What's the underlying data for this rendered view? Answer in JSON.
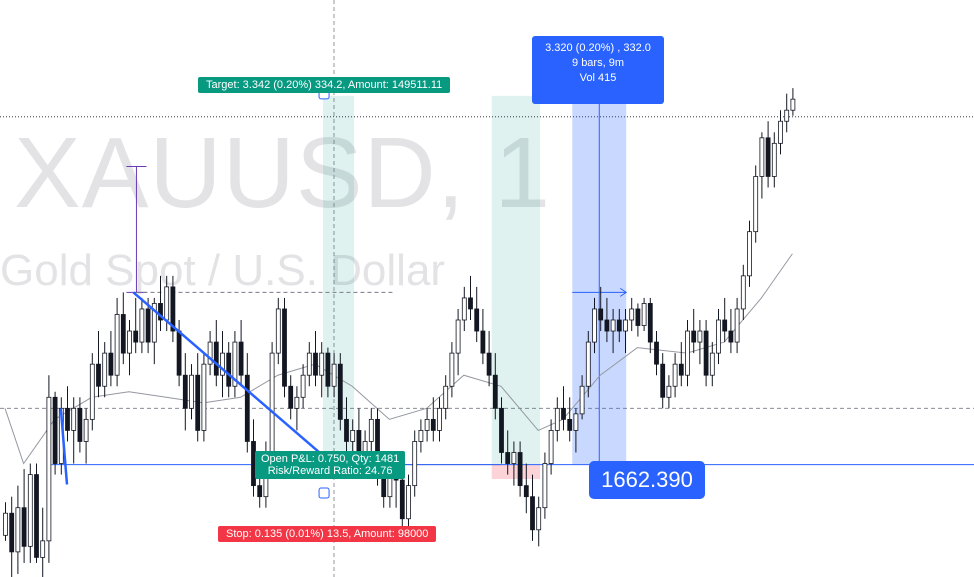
{
  "watermark": {
    "symbol": "XAUUSD, 1",
    "description": "Gold Spot / U.S. Dollar"
  },
  "position_labels": {
    "target": "Target: 3.342 (0.20%) 334.2, Amount: 149511.11",
    "stop": "Stop: 0.135 (0.01%) 13.5, Amount: 98000",
    "open_pnl": "Open P&L: 0.750, Qty: 1481",
    "risk_reward": "Risk/Reward Ratio: 24.76"
  },
  "measure": {
    "line1": "3.320 (0.20%) , 332.0",
    "line2": "9 bars, 9m",
    "line3": "Vol 415"
  },
  "price_tag": "1662.390",
  "colors": {
    "up": "#ffffff",
    "down": "#131722",
    "blue": "#2962ff",
    "green": "#089981",
    "red": "#f23645",
    "ma": "#9598a1"
  },
  "chart_data": {
    "type": "candlestick",
    "title": "XAUUSD, 1 - Gold Spot / U.S. Dollar",
    "interval": "1m",
    "ylim": [
      1661.3,
      1666.1
    ],
    "current_price": 1662.39,
    "candles": [
      [
        1661.75,
        1662.05,
        1661.7,
        1661.95
      ],
      [
        1661.95,
        1662.1,
        1661.3,
        1661.6
      ],
      [
        1661.6,
        1662.2,
        1661.4,
        1662.0
      ],
      [
        1662.0,
        1662.35,
        1661.5,
        1661.65
      ],
      [
        1661.65,
        1662.4,
        1661.5,
        1662.3
      ],
      [
        1662.3,
        1662.4,
        1661.5,
        1661.55
      ],
      [
        1661.55,
        1662.0,
        1661.35,
        1661.7
      ],
      [
        1661.7,
        1663.2,
        1661.5,
        1663.0
      ],
      [
        1663.0,
        1663.05,
        1662.3,
        1662.4
      ],
      [
        1662.4,
        1663.0,
        1662.3,
        1662.9
      ],
      [
        1662.9,
        1663.1,
        1662.6,
        1662.7
      ],
      [
        1662.7,
        1663.0,
        1662.4,
        1662.9
      ],
      [
        1662.9,
        1663.0,
        1662.5,
        1662.6
      ],
      [
        1662.6,
        1662.9,
        1662.4,
        1662.8
      ],
      [
        1662.8,
        1663.4,
        1662.7,
        1663.3
      ],
      [
        1663.3,
        1663.6,
        1663.0,
        1663.1
      ],
      [
        1663.1,
        1663.5,
        1663.0,
        1663.4
      ],
      [
        1663.4,
        1663.6,
        1663.1,
        1663.2
      ],
      [
        1663.2,
        1663.9,
        1663.1,
        1663.75
      ],
      [
        1663.75,
        1663.95,
        1663.3,
        1663.4
      ],
      [
        1663.4,
        1663.7,
        1663.2,
        1663.6
      ],
      [
        1663.6,
        1663.9,
        1663.4,
        1663.5
      ],
      [
        1663.5,
        1663.9,
        1663.4,
        1663.8
      ],
      [
        1663.8,
        1663.9,
        1663.4,
        1663.5
      ],
      [
        1663.5,
        1663.9,
        1663.3,
        1663.85
      ],
      [
        1663.85,
        1664.1,
        1663.6,
        1663.7
      ],
      [
        1663.7,
        1664.1,
        1663.6,
        1664.0
      ],
      [
        1664.0,
        1664.1,
        1663.5,
        1663.6
      ],
      [
        1663.6,
        1663.7,
        1663.1,
        1663.2
      ],
      [
        1663.2,
        1663.4,
        1662.7,
        1662.9
      ],
      [
        1662.9,
        1663.3,
        1662.8,
        1663.2
      ],
      [
        1663.2,
        1663.4,
        1662.6,
        1662.7
      ],
      [
        1662.7,
        1663.4,
        1662.6,
        1663.3
      ],
      [
        1663.3,
        1663.6,
        1663.2,
        1663.5
      ],
      [
        1663.5,
        1663.7,
        1663.1,
        1663.2
      ],
      [
        1663.2,
        1663.6,
        1663.0,
        1663.4
      ],
      [
        1663.4,
        1663.5,
        1663.0,
        1663.1
      ],
      [
        1663.1,
        1663.6,
        1663.0,
        1663.5
      ],
      [
        1663.5,
        1663.7,
        1663.1,
        1663.2
      ],
      [
        1663.2,
        1663.4,
        1662.5,
        1662.6
      ],
      [
        1662.6,
        1662.8,
        1662.1,
        1662.2
      ],
      [
        1662.2,
        1662.4,
        1662.0,
        1662.1
      ],
      [
        1662.1,
        1662.6,
        1662.0,
        1662.5
      ],
      [
        1662.5,
        1663.5,
        1662.4,
        1663.4
      ],
      [
        1663.4,
        1663.9,
        1663.3,
        1663.8
      ],
      [
        1663.8,
        1663.9,
        1663.0,
        1663.1
      ],
      [
        1663.1,
        1663.2,
        1662.8,
        1662.9
      ],
      [
        1662.9,
        1663.1,
        1662.7,
        1663.0
      ],
      [
        1663.0,
        1663.3,
        1662.9,
        1663.2
      ],
      [
        1663.2,
        1663.5,
        1663.1,
        1663.4
      ],
      [
        1663.4,
        1663.6,
        1663.1,
        1663.2
      ],
      [
        1663.2,
        1663.5,
        1663.0,
        1663.4
      ],
      [
        1663.4,
        1663.45,
        1663.0,
        1663.1
      ],
      [
        1663.1,
        1663.4,
        1663.0,
        1663.3
      ],
      [
        1663.3,
        1663.4,
        1662.7,
        1662.8
      ],
      [
        1662.8,
        1663.0,
        1662.5,
        1662.6
      ],
      [
        1662.6,
        1662.8,
        1662.4,
        1662.7
      ],
      [
        1662.7,
        1662.9,
        1662.4,
        1662.5
      ],
      [
        1662.5,
        1662.7,
        1662.3,
        1662.6
      ],
      [
        1662.6,
        1662.9,
        1662.5,
        1662.8
      ],
      [
        1662.8,
        1662.9,
        1662.2,
        1662.3
      ],
      [
        1662.3,
        1662.4,
        1662.0,
        1662.1
      ],
      [
        1662.1,
        1662.4,
        1662.0,
        1662.3
      ],
      [
        1662.3,
        1662.4,
        1662.0,
        1662.25
      ],
      [
        1662.25,
        1662.4,
        1661.8,
        1661.9
      ],
      [
        1661.9,
        1662.3,
        1661.7,
        1662.2
      ],
      [
        1662.2,
        1662.7,
        1662.1,
        1662.6
      ],
      [
        1662.6,
        1662.8,
        1662.5,
        1662.7
      ],
      [
        1662.7,
        1662.9,
        1662.6,
        1662.8
      ],
      [
        1662.8,
        1663.0,
        1662.6,
        1662.7
      ],
      [
        1662.7,
        1663.0,
        1662.6,
        1662.9
      ],
      [
        1662.9,
        1663.2,
        1662.8,
        1663.1
      ],
      [
        1663.1,
        1663.5,
        1663.0,
        1663.4
      ],
      [
        1663.4,
        1663.8,
        1663.2,
        1663.7
      ],
      [
        1663.7,
        1664.0,
        1663.6,
        1663.9
      ],
      [
        1663.9,
        1664.1,
        1663.7,
        1663.8
      ],
      [
        1663.8,
        1664.0,
        1663.5,
        1663.6
      ],
      [
        1663.6,
        1663.8,
        1663.3,
        1663.4
      ],
      [
        1663.4,
        1663.6,
        1663.1,
        1663.2
      ],
      [
        1663.2,
        1663.4,
        1662.8,
        1662.9
      ],
      [
        1662.9,
        1663.0,
        1662.4,
        1662.5
      ],
      [
        1662.5,
        1662.7,
        1662.3,
        1662.4
      ],
      [
        1662.4,
        1662.6,
        1662.2,
        1662.5
      ],
      [
        1662.5,
        1662.6,
        1662.1,
        1662.2
      ],
      [
        1662.2,
        1662.4,
        1661.95,
        1662.1
      ],
      [
        1662.1,
        1662.3,
        1661.7,
        1661.8
      ],
      [
        1661.8,
        1662.1,
        1661.65,
        1662.0
      ],
      [
        1662.0,
        1662.5,
        1661.9,
        1662.4
      ],
      [
        1662.4,
        1662.8,
        1662.3,
        1662.7
      ],
      [
        1662.7,
        1663.0,
        1662.6,
        1662.9
      ],
      [
        1662.9,
        1663.1,
        1662.7,
        1662.8
      ],
      [
        1662.8,
        1663.0,
        1662.6,
        1662.7
      ],
      [
        1662.7,
        1662.9,
        1662.5,
        1662.85
      ],
      [
        1662.85,
        1663.2,
        1662.8,
        1663.1
      ],
      [
        1663.1,
        1663.6,
        1663.0,
        1663.5
      ],
      [
        1663.5,
        1663.9,
        1663.4,
        1663.8
      ],
      [
        1663.8,
        1664.0,
        1663.6,
        1663.7
      ],
      [
        1663.7,
        1663.9,
        1663.5,
        1663.6
      ],
      [
        1663.6,
        1663.8,
        1663.4,
        1663.7
      ],
      [
        1663.7,
        1663.8,
        1663.5,
        1663.6
      ],
      [
        1663.6,
        1663.8,
        1663.4,
        1663.7
      ],
      [
        1663.7,
        1663.9,
        1663.6,
        1663.8
      ],
      [
        1663.8,
        1663.85,
        1663.55,
        1663.65
      ],
      [
        1663.65,
        1663.9,
        1663.6,
        1663.85
      ],
      [
        1663.85,
        1663.9,
        1663.4,
        1663.5
      ],
      [
        1663.5,
        1663.6,
        1663.2,
        1663.3
      ],
      [
        1663.3,
        1663.4,
        1662.9,
        1663.0
      ],
      [
        1663.0,
        1663.2,
        1662.9,
        1663.1
      ],
      [
        1663.1,
        1663.4,
        1663.0,
        1663.3
      ],
      [
        1663.3,
        1663.5,
        1663.1,
        1663.2
      ],
      [
        1663.2,
        1663.7,
        1663.1,
        1663.6
      ],
      [
        1663.6,
        1663.8,
        1663.4,
        1663.5
      ],
      [
        1663.5,
        1663.7,
        1663.3,
        1663.6
      ],
      [
        1663.6,
        1663.7,
        1663.1,
        1663.2
      ],
      [
        1663.2,
        1663.5,
        1663.1,
        1663.4
      ],
      [
        1663.4,
        1663.8,
        1663.3,
        1663.7
      ],
      [
        1663.7,
        1663.9,
        1663.5,
        1663.6
      ],
      [
        1663.6,
        1663.8,
        1663.4,
        1663.5
      ],
      [
        1663.5,
        1663.9,
        1663.4,
        1663.8
      ],
      [
        1663.8,
        1664.2,
        1663.7,
        1664.1
      ],
      [
        1664.1,
        1664.6,
        1664.0,
        1664.5
      ],
      [
        1664.5,
        1665.1,
        1664.4,
        1665.0
      ],
      [
        1665.0,
        1665.4,
        1664.8,
        1665.35
      ],
      [
        1665.35,
        1665.5,
        1664.9,
        1665.0
      ],
      [
        1665.0,
        1665.4,
        1664.9,
        1665.3
      ],
      [
        1665.3,
        1665.6,
        1665.2,
        1665.5
      ],
      [
        1665.5,
        1665.75,
        1665.4,
        1665.6
      ],
      [
        1665.6,
        1665.8,
        1665.55,
        1665.7
      ]
    ],
    "moving_average": [
      [
        0,
        1662.9
      ],
      [
        3,
        1662.4
      ],
      [
        8,
        1662.8
      ],
      [
        14,
        1663.0
      ],
      [
        20,
        1663.05
      ],
      [
        26,
        1663.0
      ],
      [
        32,
        1662.95
      ],
      [
        38,
        1663.0
      ],
      [
        44,
        1663.2
      ],
      [
        50,
        1663.3
      ],
      [
        56,
        1663.1
      ],
      [
        62,
        1662.8
      ],
      [
        68,
        1662.9
      ],
      [
        74,
        1663.2
      ],
      [
        80,
        1663.1
      ],
      [
        86,
        1662.7
      ],
      [
        90,
        1662.8
      ],
      [
        96,
        1663.2
      ],
      [
        102,
        1663.45
      ],
      [
        110,
        1663.4
      ],
      [
        116,
        1663.5
      ],
      [
        122,
        1663.9
      ],
      [
        127,
        1664.3
      ]
    ],
    "levels": {
      "dotted_high": 1665.54,
      "dashed_mid": 1662.9,
      "entry": 1662.39,
      "target": 1665.73,
      "stop": 1662.26
    }
  }
}
